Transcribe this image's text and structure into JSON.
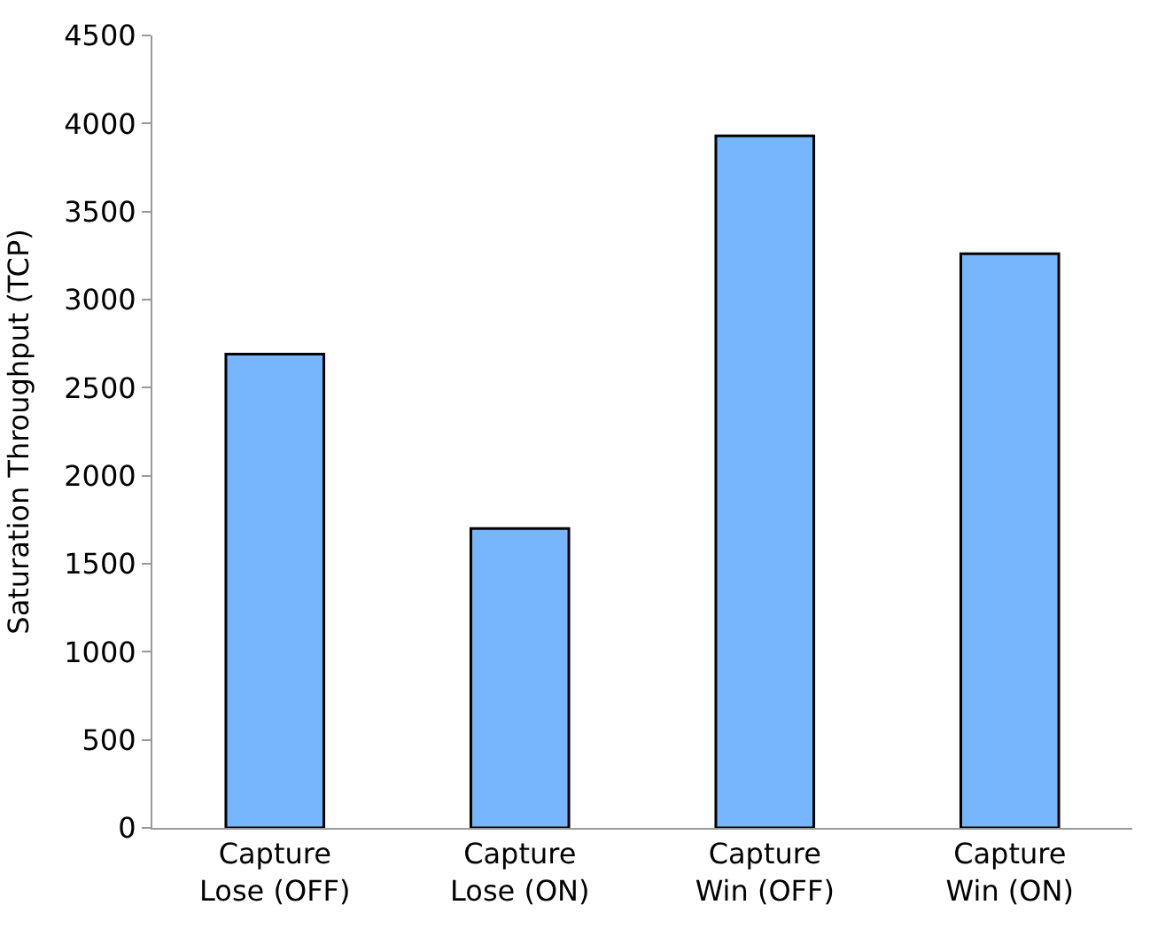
{
  "chart_data": {
    "type": "bar",
    "ylabel": "Saturation Throughput (TCP)",
    "categories": [
      "Capture\nLose (OFF)",
      "Capture\nLose (ON)",
      "Capture\nWin (OFF)",
      "Capture\nWin (ON)"
    ],
    "values": [
      2690,
      1700,
      3930,
      3260
    ],
    "color": "#77b5fd",
    "ylim": [
      0,
      4500
    ],
    "yticks": [
      0,
      500,
      1000,
      1500,
      2000,
      2500,
      3000,
      3500,
      4000,
      4500
    ]
  }
}
